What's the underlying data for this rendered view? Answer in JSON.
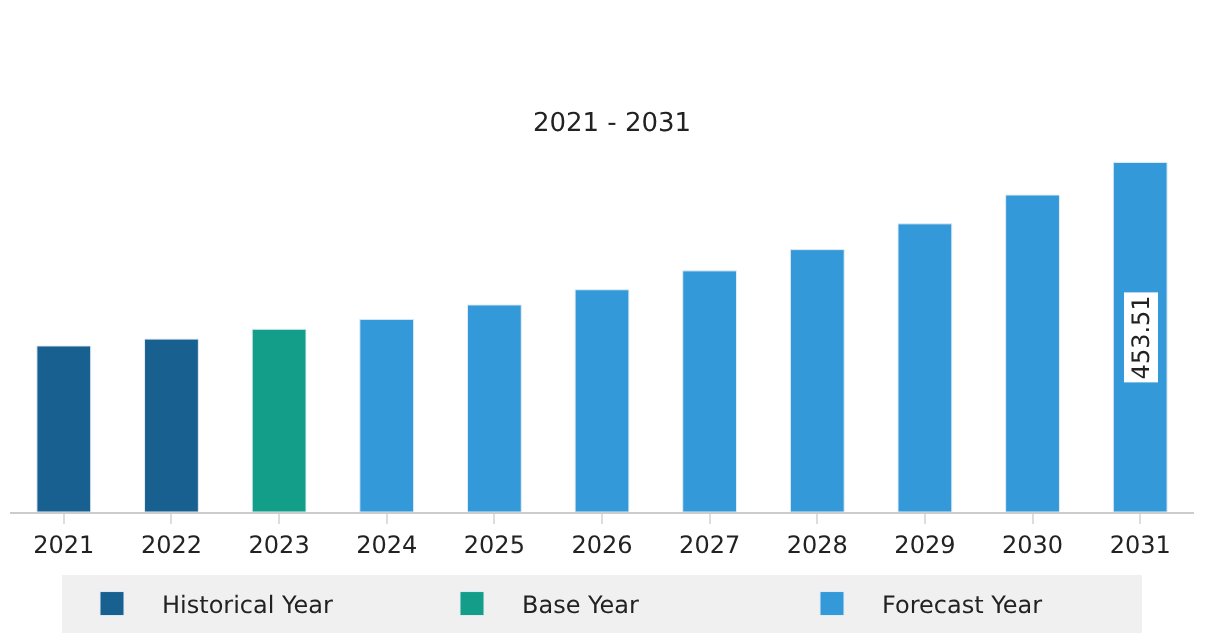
{
  "chart_data": {
    "type": "bar",
    "title": "2021 - 2031",
    "categories": [
      "2021",
      "2022",
      "2023",
      "2024",
      "2025",
      "2026",
      "2027",
      "2028",
      "2029",
      "2030",
      "2031"
    ],
    "series": [
      {
        "name": "Historical Year",
        "color": "#17608f",
        "values": [
          215.4,
          224.3,
          null,
          null,
          null,
          null,
          null,
          null,
          null,
          null,
          null
        ]
      },
      {
        "name": "Base Year",
        "color": "#129e88",
        "values": [
          null,
          null,
          237.1,
          null,
          null,
          null,
          null,
          null,
          null,
          null,
          null
        ]
      },
      {
        "name": "Forecast Year",
        "color": "#3399d9",
        "values": [
          null,
          null,
          null,
          249.9,
          268.6,
          288.3,
          312.8,
          340.4,
          373.8,
          411.2,
          453.51
        ],
        "value_labels": [
          null,
          null,
          null,
          null,
          null,
          null,
          null,
          null,
          null,
          null,
          "453.51"
        ]
      }
    ],
    "legend": "bottom"
  }
}
